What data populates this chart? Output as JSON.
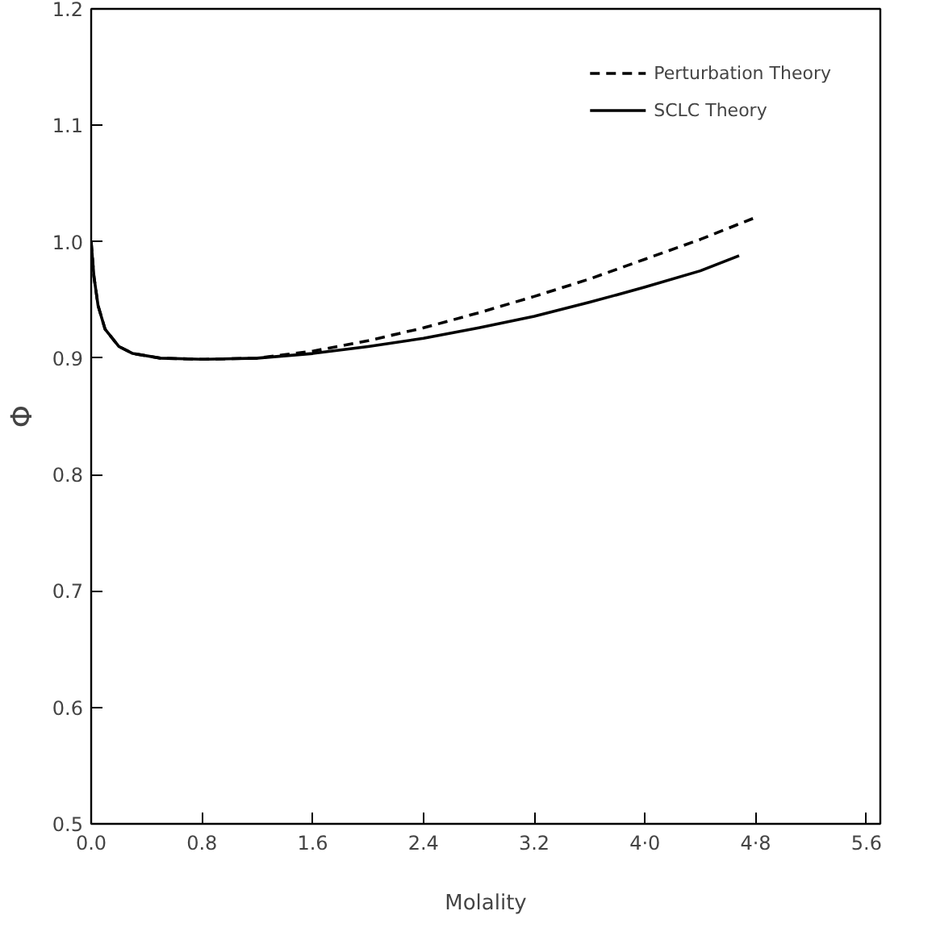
{
  "chart_data": {
    "type": "line",
    "xlabel": "Molality",
    "ylabel": "Φ",
    "xlim": [
      0,
      5.7
    ],
    "ylim": [
      0.5,
      1.2
    ],
    "xticks": [
      {
        "value": 0,
        "label": "0.0"
      },
      0.8,
      1.6,
      2.4,
      3.2,
      {
        "value": 4.0,
        "label": "4·0"
      },
      {
        "value": 4.8,
        "label": "4·8"
      },
      5.6
    ],
    "yticks": [
      0.5,
      0.6,
      0.7,
      0.8,
      0.9,
      {
        "value": 1.0,
        "label": "1.0"
      },
      1.1,
      1.2
    ],
    "grid": false,
    "legend": "top right",
    "series": [
      {
        "name": "Perturbation Theory",
        "color": "#000000",
        "line_style": "dashed",
        "x": [
          0,
          0.02,
          0.05,
          0.1,
          0.2,
          0.3,
          0.5,
          0.8,
          1.2,
          1.6,
          2.0,
          2.4,
          2.8,
          3.2,
          3.6,
          4.0,
          4.4,
          4.78
        ],
        "values": [
          1.0,
          0.97,
          0.945,
          0.925,
          0.91,
          0.904,
          0.9,
          0.899,
          0.9,
          0.906,
          0.915,
          0.926,
          0.939,
          0.953,
          0.968,
          0.985,
          1.002,
          1.02
        ]
      },
      {
        "name": "SCLC Theory",
        "color": "#000000",
        "line_style": "solid",
        "x": [
          0,
          0.02,
          0.05,
          0.1,
          0.2,
          0.3,
          0.5,
          0.8,
          1.2,
          1.6,
          2.0,
          2.4,
          2.8,
          3.2,
          3.6,
          4.0,
          4.4,
          4.68
        ],
        "values": [
          1.0,
          0.97,
          0.945,
          0.925,
          0.91,
          0.904,
          0.9,
          0.899,
          0.9,
          0.904,
          0.91,
          0.917,
          0.926,
          0.936,
          0.948,
          0.961,
          0.975,
          0.988
        ]
      }
    ]
  }
}
